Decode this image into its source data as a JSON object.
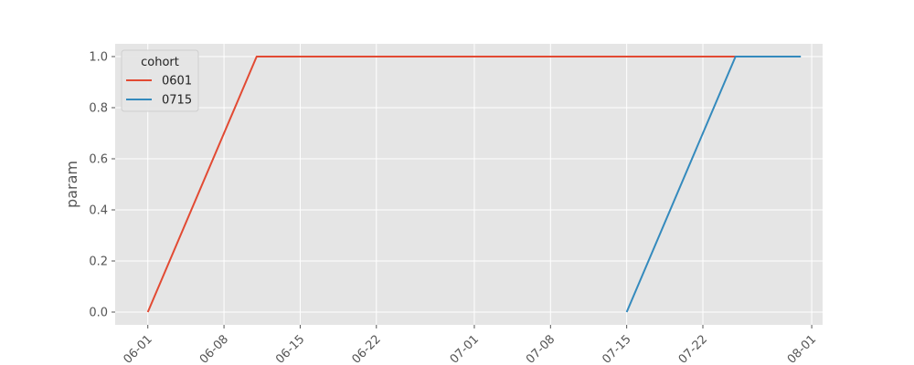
{
  "chart_data": {
    "type": "line",
    "title": "",
    "xlabel": "",
    "ylabel": "param",
    "x_ticks": [
      "06-01",
      "06-08",
      "06-15",
      "06-22",
      "07-01",
      "07-08",
      "07-15",
      "07-22",
      "08-01"
    ],
    "x_tick_dates": [
      "2023-06-01",
      "2023-06-08",
      "2023-06-15",
      "2023-06-22",
      "2023-07-01",
      "2023-07-08",
      "2023-07-15",
      "2023-07-22",
      "2023-08-01"
    ],
    "xlim": [
      "2023-05-29",
      "2023-08-02"
    ],
    "y_ticks": [
      "0.0",
      "0.2",
      "0.4",
      "0.6",
      "0.8",
      "1.0"
    ],
    "ylim": [
      -0.05,
      1.05
    ],
    "grid": true,
    "legend": {
      "title": "cohort",
      "position": "top-left"
    },
    "series": [
      {
        "name": "0601",
        "color": "#E24A33",
        "points": [
          {
            "x": "2023-06-01",
            "y": 0.0
          },
          {
            "x": "2023-06-11",
            "y": 1.0
          },
          {
            "x": "2023-07-25",
            "y": 1.0
          }
        ]
      },
      {
        "name": "0715",
        "color": "#348ABD",
        "points": [
          {
            "x": "2023-07-15",
            "y": 0.0
          },
          {
            "x": "2023-07-25",
            "y": 1.0
          },
          {
            "x": "2023-07-31",
            "y": 1.0
          }
        ]
      }
    ]
  }
}
